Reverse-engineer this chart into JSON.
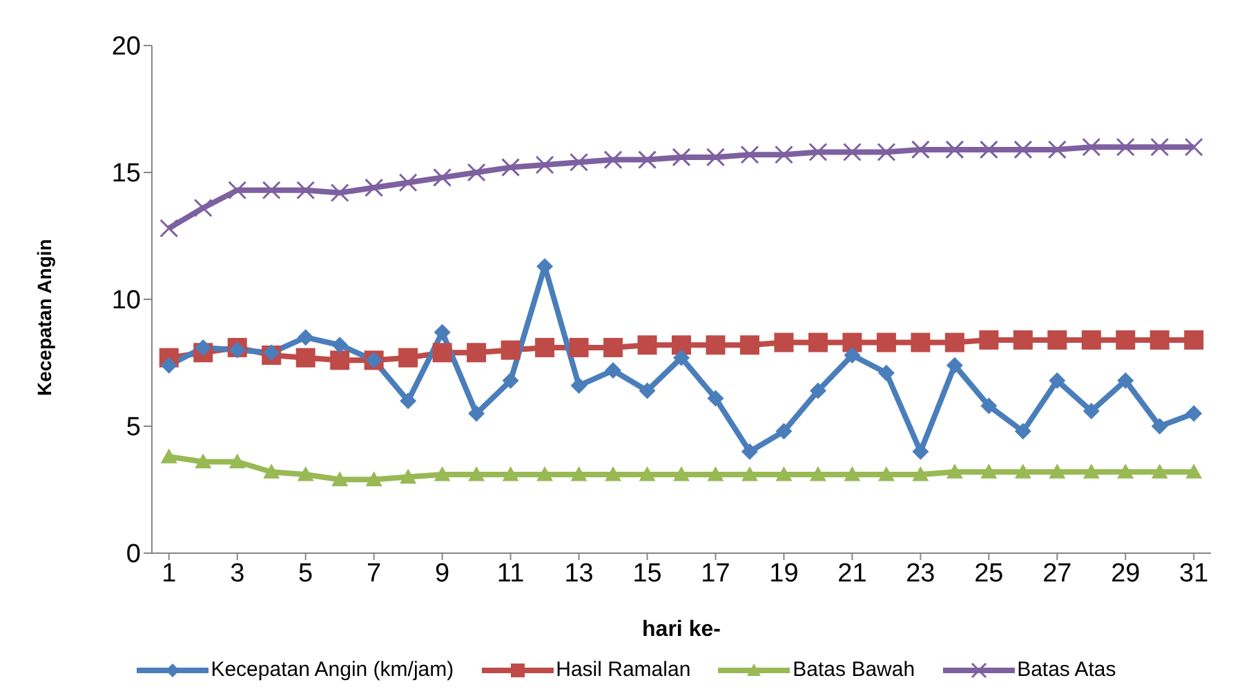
{
  "chart_data": {
    "type": "line",
    "xlabel": "hari ke-",
    "ylabel": "Kecepatan Angin",
    "x": [
      1,
      2,
      3,
      4,
      5,
      6,
      7,
      8,
      9,
      10,
      11,
      12,
      13,
      14,
      15,
      16,
      17,
      18,
      19,
      20,
      21,
      22,
      23,
      24,
      25,
      26,
      27,
      28,
      29,
      30,
      31
    ],
    "xlim": [
      0.5,
      31.5
    ],
    "xticks": [
      1,
      3,
      5,
      7,
      9,
      11,
      13,
      15,
      17,
      19,
      21,
      23,
      25,
      27,
      29,
      31
    ],
    "ylim": [
      0,
      20
    ],
    "yticks": [
      0,
      5,
      10,
      15,
      20
    ],
    "grid": false,
    "legend": "bottom",
    "series": [
      {
        "name": "Kecepatan Angin (km/jam)",
        "color": "#4a7ebb",
        "marker": "diamond",
        "values": [
          7.4,
          8.1,
          8.0,
          7.9,
          8.5,
          8.2,
          7.6,
          6.0,
          8.7,
          5.5,
          6.8,
          11.3,
          6.6,
          7.2,
          6.4,
          7.7,
          6.1,
          4.0,
          4.8,
          6.4,
          7.8,
          7.1,
          4.0,
          7.4,
          5.8,
          4.8,
          6.8,
          5.6,
          6.8,
          5.0,
          5.5
        ]
      },
      {
        "name": "Hasil Ramalan",
        "color": "#be4b48",
        "marker": "square",
        "values": [
          7.7,
          7.9,
          8.1,
          7.8,
          7.7,
          7.6,
          7.6,
          7.7,
          7.9,
          7.9,
          8.0,
          8.1,
          8.1,
          8.1,
          8.2,
          8.2,
          8.2,
          8.2,
          8.3,
          8.3,
          8.3,
          8.3,
          8.3,
          8.3,
          8.4,
          8.4,
          8.4,
          8.4,
          8.4,
          8.4,
          8.4
        ]
      },
      {
        "name": "Batas Bawah",
        "color": "#98b954",
        "marker": "triangle",
        "values": [
          3.8,
          3.6,
          3.6,
          3.2,
          3.1,
          2.9,
          2.9,
          3.0,
          3.1,
          3.1,
          3.1,
          3.1,
          3.1,
          3.1,
          3.1,
          3.1,
          3.1,
          3.1,
          3.1,
          3.1,
          3.1,
          3.1,
          3.1,
          3.2,
          3.2,
          3.2,
          3.2,
          3.2,
          3.2,
          3.2,
          3.2
        ]
      },
      {
        "name": "Batas Atas",
        "color": "#7d60a0",
        "marker": "cross",
        "values": [
          12.8,
          13.6,
          14.3,
          14.3,
          14.3,
          14.2,
          14.4,
          14.6,
          14.8,
          15.0,
          15.2,
          15.3,
          15.4,
          15.5,
          15.5,
          15.6,
          15.6,
          15.7,
          15.7,
          15.8,
          15.8,
          15.8,
          15.9,
          15.9,
          15.9,
          15.9,
          15.9,
          16.0,
          16.0,
          16.0,
          16.0
        ]
      }
    ]
  }
}
